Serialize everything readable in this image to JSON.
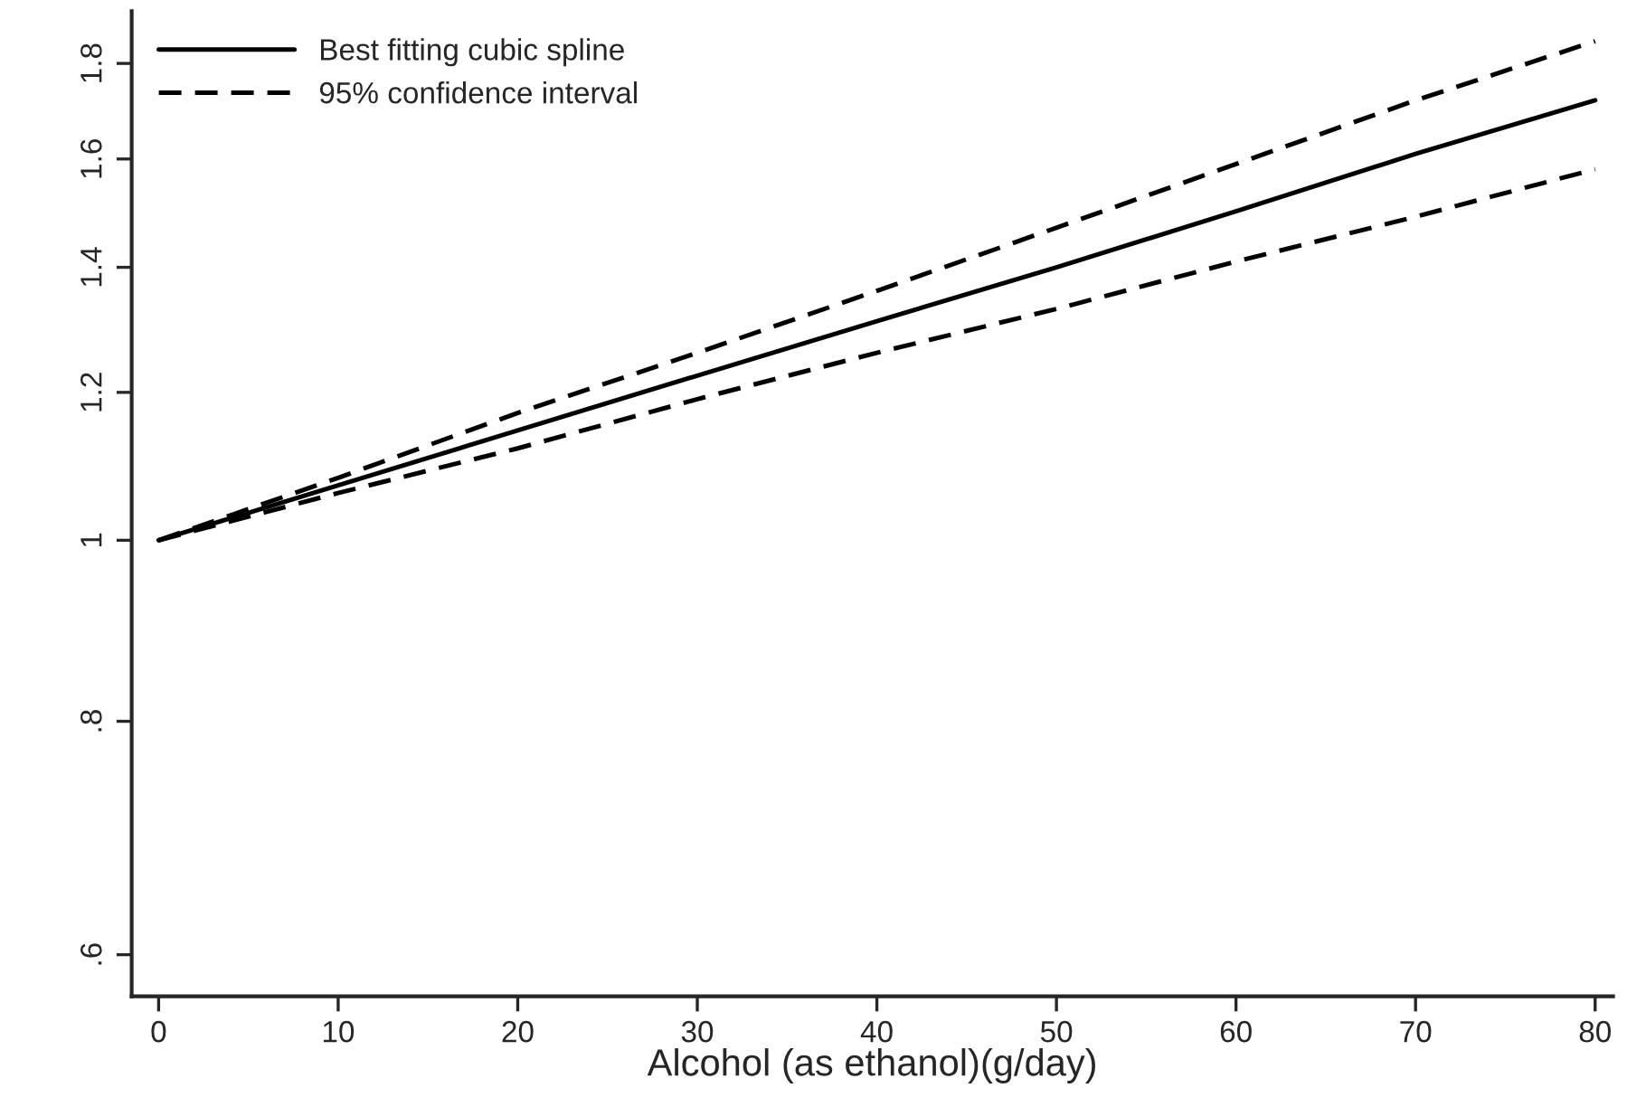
{
  "chart_data": {
    "type": "line",
    "xlabel": "Alcohol (as ethanol)(g/day)",
    "x": [
      0,
      10,
      20,
      30,
      40,
      50,
      60,
      70,
      80
    ],
    "series": [
      {
        "name": "Best fitting cubic spline",
        "color": "#000000",
        "line_style": "solid",
        "values": [
          1,
          1.07,
          1.145,
          1.225,
          1.31,
          1.4,
          1.5,
          1.61,
          1.72
        ]
      },
      {
        "name": "95% confidence interval",
        "color": "#000000",
        "line_style": "dashed",
        "values": [
          1,
          1.08,
          1.17,
          1.26,
          1.36,
          1.47,
          1.59,
          1.72,
          1.85
        ]
      },
      {
        "color": "#000000",
        "line_style": "dashed",
        "values": [
          1,
          1.06,
          1.12,
          1.19,
          1.26,
          1.33,
          1.41,
          1.49,
          1.58
        ]
      }
    ],
    "log": "y",
    "xlim": [
      -1.5,
      81
    ],
    "ylim": [
      0.57,
      1.92
    ],
    "xticks": [
      0,
      10,
      20,
      30,
      40,
      50,
      60,
      70,
      80
    ],
    "yticks": [
      {
        "value": 0.6,
        "label": ".6"
      },
      {
        "value": 0.8,
        "label": ".8"
      },
      1,
      1.2,
      1.4,
      1.6,
      1.8
    ],
    "grid": false,
    "legend": "top left",
    "marker": "none"
  }
}
